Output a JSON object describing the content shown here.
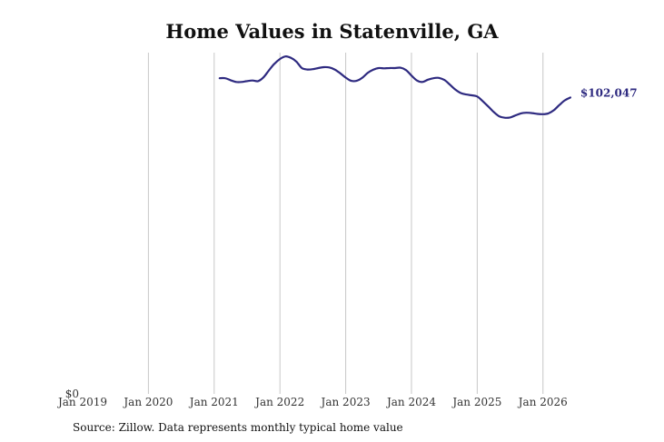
{
  "chart_data": {
    "type": "line",
    "title": "Home Values in Statenville, GA",
    "x_tick_labels": [
      "Jan 2019",
      "Jan 2020",
      "Jan 2021",
      "Jan 2022",
      "Jan 2023",
      "Jan 2024",
      "Jan 2025",
      "Jan 2026"
    ],
    "y_tick_labels": [
      "$0"
    ],
    "xlim": [
      "2019-01",
      "2026-08"
    ],
    "ylim": [
      0,
      117500
    ],
    "grid": "vertical",
    "legend": "none",
    "line_color": "#2e2a80",
    "end_label": "$102,047",
    "series": [
      {
        "x": [
          "2021-02",
          "2021-03",
          "2021-04",
          "2021-05",
          "2021-06",
          "2021-07",
          "2021-08",
          "2021-09",
          "2021-10",
          "2021-11",
          "2021-12",
          "2022-01",
          "2022-02",
          "2022-03",
          "2022-04",
          "2022-05",
          "2022-06",
          "2022-07",
          "2022-08",
          "2022-09",
          "2022-10",
          "2022-11",
          "2022-12",
          "2023-01",
          "2023-02",
          "2023-03",
          "2023-04",
          "2023-05",
          "2023-06",
          "2023-07",
          "2023-08",
          "2023-09",
          "2023-10",
          "2023-11",
          "2023-12",
          "2024-01",
          "2024-02",
          "2024-03",
          "2024-04",
          "2024-05",
          "2024-06",
          "2024-07",
          "2024-08",
          "2024-09",
          "2024-10",
          "2024-11",
          "2024-12",
          "2025-01",
          "2025-02",
          "2025-03",
          "2025-04",
          "2025-05",
          "2025-06",
          "2025-07",
          "2025-08",
          "2025-09",
          "2025-10",
          "2025-11",
          "2025-12",
          "2026-01",
          "2026-02",
          "2026-03",
          "2026-04",
          "2026-05",
          "2026-06"
        ],
        "values": [
          108700,
          108700,
          108000,
          107400,
          107400,
          107700,
          107900,
          107700,
          109000,
          111400,
          113700,
          115300,
          116200,
          115700,
          114400,
          112200,
          111700,
          111800,
          112200,
          112500,
          112400,
          111700,
          110400,
          108900,
          107800,
          107800,
          108800,
          110500,
          111600,
          112200,
          112100,
          112200,
          112200,
          112300,
          111500,
          109600,
          107900,
          107400,
          108200,
          108700,
          108800,
          108100,
          106500,
          104800,
          103600,
          103100,
          102800,
          102400,
          100800,
          99000,
          97100,
          95600,
          95100,
          95200,
          95900,
          96600,
          96800,
          96700,
          96400,
          96300,
          96600,
          97700,
          99500,
          101100,
          102047
        ]
      }
    ]
  },
  "footer": "Source: Zillow. Data represents monthly typical home value"
}
